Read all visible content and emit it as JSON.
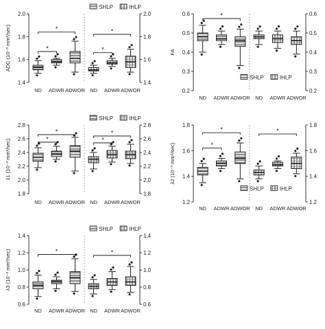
{
  "chart_data": [
    {
      "type": "boxplot",
      "ylabel": "ADC (10⁻³ mm²/sec)",
      "ylim": [
        1.4,
        2.0
      ],
      "yticks": [
        "1.4",
        "1.6",
        "1.8",
        "2.0"
      ],
      "y2ticks": [
        "1.4",
        "1.6",
        "1.8",
        "2.0"
      ],
      "legend": [
        "SHLP",
        "IHLP"
      ],
      "categories": [
        "ND",
        "ADWR",
        "ADWOR"
      ],
      "groups": [
        {
          "name": "SHLP",
          "boxes": [
            {
              "min": 1.48,
              "q1": 1.51,
              "median": 1.53,
              "q3": 1.55,
              "max": 1.59
            },
            {
              "min": 1.55,
              "q1": 1.57,
              "median": 1.58,
              "q3": 1.6,
              "max": 1.61
            },
            {
              "min": 1.49,
              "q1": 1.57,
              "median": 1.61,
              "q3": 1.67,
              "max": 1.76
            }
          ]
        },
        {
          "name": "IHLP",
          "boxes": [
            {
              "min": 1.48,
              "q1": 1.5,
              "median": 1.51,
              "q3": 1.53,
              "max": 1.55
            },
            {
              "min": 1.54,
              "q1": 1.56,
              "median": 1.57,
              "q3": 1.59,
              "max": 1.61
            },
            {
              "min": 1.49,
              "q1": 1.53,
              "median": 1.58,
              "q3": 1.63,
              "max": 1.69
            }
          ]
        }
      ],
      "significance": [
        {
          "group": 0,
          "from": 0,
          "to": 1,
          "y": 1.67,
          "label": "*"
        },
        {
          "group": 0,
          "from": 0,
          "to": 2,
          "y": 1.84,
          "label": "*"
        },
        {
          "group": 1,
          "from": 0,
          "to": 1,
          "y": 1.66,
          "label": "*"
        },
        {
          "group": 1,
          "from": 0,
          "to": 2,
          "y": 1.82,
          "label": "*"
        }
      ]
    },
    {
      "type": "boxplot",
      "ylabel": "FA",
      "ylim": [
        0.2,
        0.6
      ],
      "yticks": [
        "0.2",
        "0.3",
        "0.4",
        "0.5",
        "0.6"
      ],
      "y2ticks": [
        "0.2",
        "0.3",
        "0.4",
        "0.5",
        "0.6"
      ],
      "legend": [
        "SHLP",
        "IHLP"
      ],
      "categories": [
        "ND",
        "ADWR",
        "ADWOR"
      ],
      "groups": [
        {
          "name": "SHLP",
          "boxes": [
            {
              "min": 0.4,
              "q1": 0.46,
              "median": 0.48,
              "q3": 0.5,
              "max": 0.54
            },
            {
              "min": 0.44,
              "q1": 0.46,
              "median": 0.47,
              "q3": 0.49,
              "max": 0.51
            },
            {
              "min": 0.33,
              "q1": 0.43,
              "median": 0.46,
              "q3": 0.48,
              "max": 0.52
            }
          ]
        },
        {
          "name": "IHLP",
          "boxes": [
            {
              "min": 0.44,
              "q1": 0.47,
              "median": 0.48,
              "q3": 0.49,
              "max": 0.51
            },
            {
              "min": 0.42,
              "q1": 0.45,
              "median": 0.47,
              "q3": 0.49,
              "max": 0.51
            },
            {
              "min": 0.39,
              "q1": 0.44,
              "median": 0.46,
              "q3": 0.48,
              "max": 0.51
            }
          ]
        }
      ],
      "significance": [
        {
          "group": 0,
          "from": 0,
          "to": 2,
          "y": 0.575,
          "label": "*"
        }
      ]
    },
    {
      "type": "boxplot",
      "ylabel": "λ1 (10⁻³ mm²/sec)",
      "ylim": [
        1.8,
        2.8
      ],
      "yticks": [
        "1.8",
        "2.0",
        "2.2",
        "2.4",
        "2.6",
        "2.8"
      ],
      "y2ticks": [
        "1.8",
        "2.0",
        "2.2",
        "2.4",
        "2.6",
        "2.8"
      ],
      "legend": [
        "SHLP",
        "IHLP"
      ],
      "categories": [
        "ND",
        "ADWR",
        "ADWOR"
      ],
      "groups": [
        {
          "name": "SHLP",
          "boxes": [
            {
              "min": 2.18,
              "q1": 2.27,
              "median": 2.33,
              "q3": 2.39,
              "max": 2.47
            },
            {
              "min": 2.3,
              "q1": 2.34,
              "median": 2.38,
              "q3": 2.42,
              "max": 2.49
            },
            {
              "min": 2.13,
              "q1": 2.33,
              "median": 2.42,
              "q3": 2.5,
              "max": 2.62
            }
          ]
        },
        {
          "name": "IHLP",
          "boxes": [
            {
              "min": 2.16,
              "q1": 2.25,
              "median": 2.3,
              "q3": 2.34,
              "max": 2.4
            },
            {
              "min": 2.26,
              "q1": 2.32,
              "median": 2.37,
              "q3": 2.43,
              "max": 2.49
            },
            {
              "min": 2.24,
              "q1": 2.31,
              "median": 2.37,
              "q3": 2.42,
              "max": 2.52
            }
          ]
        }
      ],
      "significance": [
        {
          "group": 0,
          "from": 0,
          "to": 1,
          "y": 2.55,
          "label": "*"
        },
        {
          "group": 0,
          "from": 0,
          "to": 2,
          "y": 2.66,
          "label": "*"
        },
        {
          "group": 1,
          "from": 0,
          "to": 1,
          "y": 2.54,
          "label": "*"
        },
        {
          "group": 1,
          "from": 0,
          "to": 2,
          "y": 2.64,
          "label": "*"
        }
      ]
    },
    {
      "type": "boxplot",
      "ylabel": "λ2 (10⁻³ mm²/sec)",
      "ylim": [
        1.2,
        1.8
      ],
      "yticks": [
        "1.2",
        "1.4",
        "1.6",
        "1.8"
      ],
      "y2ticks": [
        "1.2",
        "1.4",
        "1.6",
        "1.8"
      ],
      "legend": [
        "SHLP",
        "IHLP"
      ],
      "categories": [
        "ND",
        "ADWR",
        "ADWOR"
      ],
      "groups": [
        {
          "name": "SHLP",
          "boxes": [
            {
              "min": 1.35,
              "q1": 1.41,
              "median": 1.44,
              "q3": 1.47,
              "max": 1.5
            },
            {
              "min": 1.46,
              "q1": 1.48,
              "median": 1.5,
              "q3": 1.52,
              "max": 1.54
            },
            {
              "min": 1.38,
              "q1": 1.5,
              "median": 1.54,
              "q3": 1.59,
              "max": 1.66
            }
          ]
        },
        {
          "name": "IHLP",
          "boxes": [
            {
              "min": 1.38,
              "q1": 1.41,
              "median": 1.43,
              "q3": 1.45,
              "max": 1.48
            },
            {
              "min": 1.46,
              "q1": 1.48,
              "median": 1.49,
              "q3": 1.51,
              "max": 1.52
            },
            {
              "min": 1.42,
              "q1": 1.46,
              "median": 1.5,
              "q3": 1.55,
              "max": 1.58
            }
          ]
        }
      ],
      "significance": [
        {
          "group": 0,
          "from": 0,
          "to": 1,
          "y": 1.62,
          "label": "*"
        },
        {
          "group": 0,
          "from": 0,
          "to": 2,
          "y": 1.74,
          "label": "*"
        },
        {
          "group": 1,
          "from": 0,
          "to": 2,
          "y": 1.73,
          "label": "*"
        }
      ]
    },
    {
      "type": "boxplot",
      "ylabel": "λ3 (10⁻³ mm²/sec)",
      "ylim": [
        0.6,
        1.4
      ],
      "yticks": [
        "0.6",
        "0.8",
        "1.0",
        "1.2",
        "1.4"
      ],
      "y2ticks": [
        "0.6",
        "0.8",
        "1.0",
        "1.2",
        "1.4"
      ],
      "legend": [
        "SHLP",
        "IHLP"
      ],
      "categories": [
        "ND",
        "ADWR",
        "ADWOR"
      ],
      "groups": [
        {
          "name": "SHLP",
          "boxes": [
            {
              "min": 0.69,
              "q1": 0.78,
              "median": 0.82,
              "q3": 0.86,
              "max": 0.94
            },
            {
              "min": 0.78,
              "q1": 0.84,
              "median": 0.86,
              "q3": 0.88,
              "max": 0.92
            },
            {
              "min": 0.75,
              "q1": 0.84,
              "median": 0.91,
              "q3": 0.98,
              "max": 1.13
            }
          ]
        },
        {
          "name": "IHLP",
          "boxes": [
            {
              "min": 0.72,
              "q1": 0.78,
              "median": 0.81,
              "q3": 0.84,
              "max": 0.89
            },
            {
              "min": 0.77,
              "q1": 0.82,
              "median": 0.86,
              "q3": 0.9,
              "max": 0.98
            },
            {
              "min": 0.74,
              "q1": 0.82,
              "median": 0.86,
              "q3": 0.92,
              "max": 1.04
            }
          ]
        }
      ],
      "significance": [
        {
          "group": 0,
          "from": 0,
          "to": 2,
          "y": 1.18,
          "label": "*"
        },
        {
          "group": 1,
          "from": 0,
          "to": 2,
          "y": 1.17,
          "label": "*"
        }
      ]
    }
  ]
}
